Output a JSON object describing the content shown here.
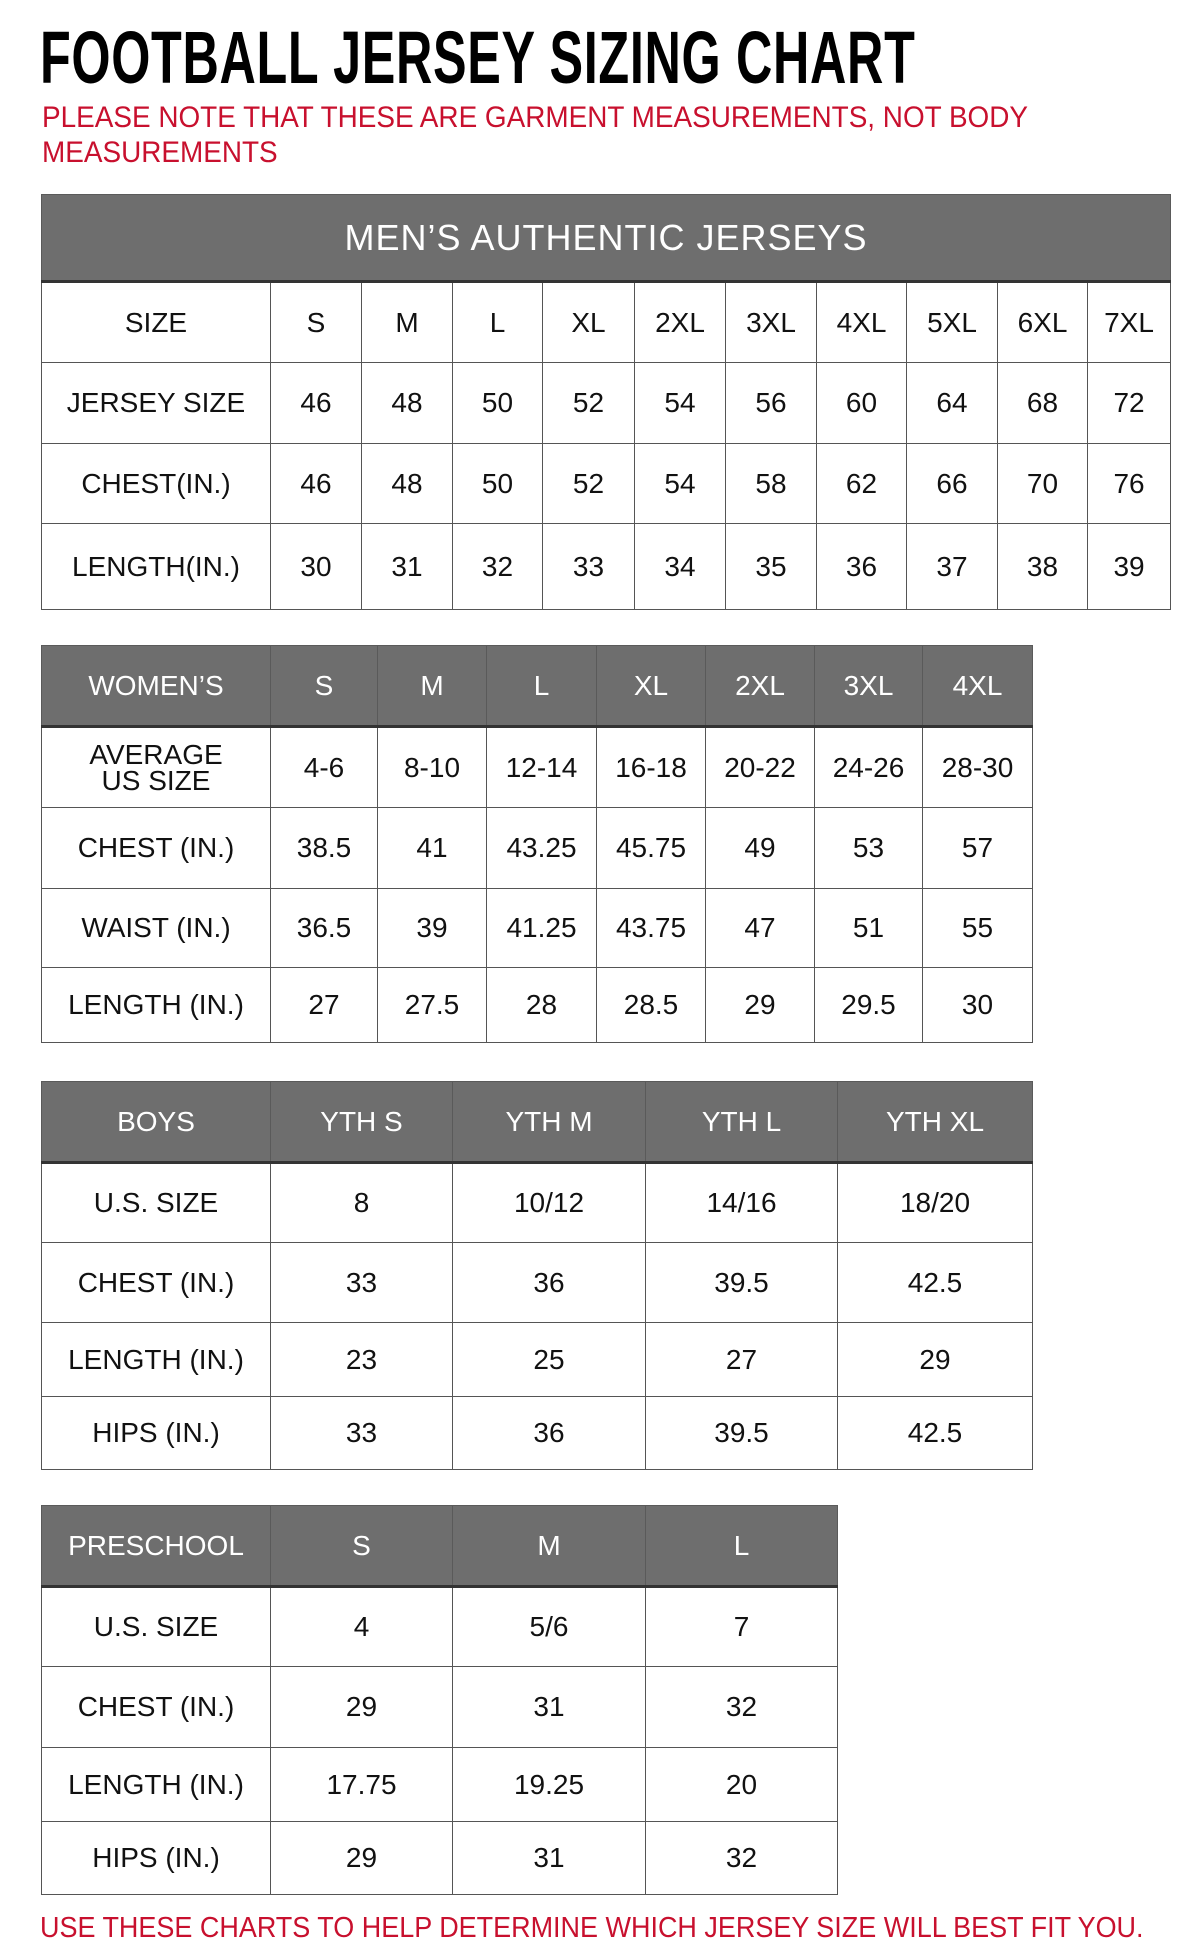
{
  "title": "FOOTBALL JERSEY SIZING CHART",
  "note": "PLEASE NOTE THAT THESE ARE GARMENT MEASUREMENTS, NOT BODY MEASUREMENTS",
  "footer": "USE THESE CHARTS TO HELP DETERMINE WHICH JERSEY SIZE WILL BEST FIT YOU.",
  "colors": {
    "header_bg": "#6e6e6e",
    "note_red": "#c8102e"
  },
  "tables": [
    {
      "banner": "MEN’S AUTHENTIC JERSEYS",
      "header": [
        "SIZE",
        "S",
        "M",
        "L",
        "XL",
        "2XL",
        "3XL",
        "4XL",
        "5XL",
        "6XL",
        "7XL"
      ],
      "header_style": "plain",
      "rows": [
        [
          "JERSEY SIZE",
          "46",
          "48",
          "50",
          "52",
          "54",
          "56",
          "60",
          "64",
          "68",
          "72"
        ],
        [
          "CHEST(IN.)",
          "46",
          "48",
          "50",
          "52",
          "54",
          "58",
          "62",
          "66",
          "70",
          "76"
        ],
        [
          "LENGTH(IN.)",
          "30",
          "31",
          "32",
          "33",
          "34",
          "35",
          "36",
          "37",
          "38",
          "39"
        ]
      ]
    },
    {
      "header": [
        "WOMEN’S",
        "S",
        "M",
        "L",
        "XL",
        "2XL",
        "3XL",
        "4XL"
      ],
      "header_style": "dark",
      "rows": [
        [
          "AVERAGE US SIZE",
          "4-6",
          "8-10",
          "12-14",
          "16-18",
          "20-22",
          "24-26",
          "28-30"
        ],
        [
          "CHEST (IN.)",
          "38.5",
          "41",
          "43.25",
          "45.75",
          "49",
          "53",
          "57"
        ],
        [
          "WAIST (IN.)",
          "36.5",
          "39",
          "41.25",
          "43.75",
          "47",
          "51",
          "55"
        ],
        [
          "LENGTH (IN.)",
          "27",
          "27.5",
          "28",
          "28.5",
          "29",
          "29.5",
          "30"
        ]
      ]
    },
    {
      "header": [
        "BOYS",
        "YTH S",
        "YTH M",
        "YTH L",
        "YTH XL"
      ],
      "header_style": "dark",
      "rows": [
        [
          "U.S. SIZE",
          "8",
          "10/12",
          "14/16",
          "18/20"
        ],
        [
          "CHEST (IN.)",
          "33",
          "36",
          "39.5",
          "42.5"
        ],
        [
          "LENGTH (IN.)",
          "23",
          "25",
          "27",
          "29"
        ],
        [
          "HIPS (IN.)",
          "33",
          "36",
          "39.5",
          "42.5"
        ]
      ]
    },
    {
      "header": [
        "PRESCHOOL",
        "S",
        "M",
        "L"
      ],
      "header_style": "dark",
      "rows": [
        [
          "U.S. SIZE",
          "4",
          "5/6",
          "7"
        ],
        [
          "CHEST (IN.)",
          "29",
          "31",
          "32"
        ],
        [
          "LENGTH (IN.)",
          "17.75",
          "19.25",
          "20"
        ],
        [
          "HIPS (IN.)",
          "29",
          "31",
          "32"
        ]
      ]
    }
  ]
}
